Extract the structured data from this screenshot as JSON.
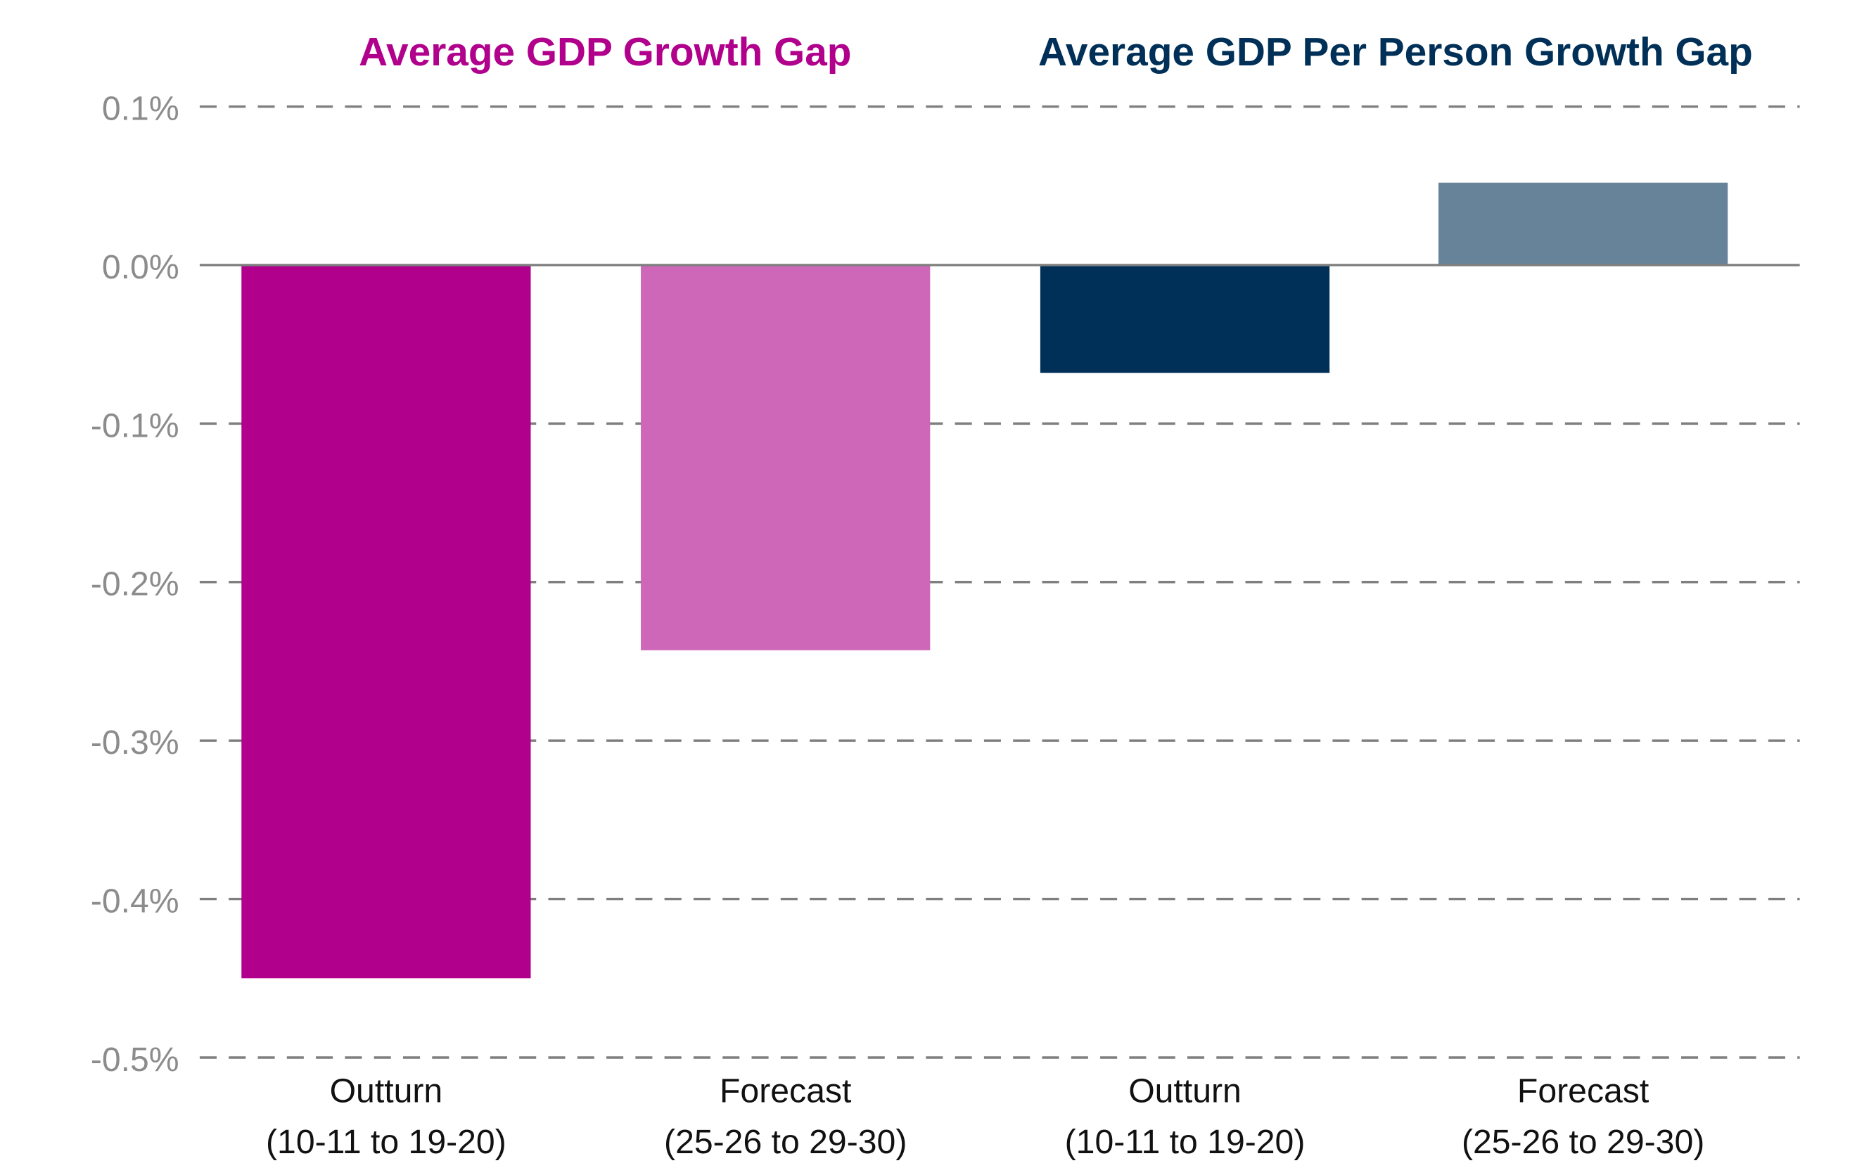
{
  "chart_data": {
    "type": "bar",
    "group_titles": [
      {
        "text": "Average GDP Growth Gap",
        "color": "#B0008C"
      },
      {
        "text": "Average GDP Per Person Growth Gap",
        "color": "#003057"
      }
    ],
    "categories": [
      {
        "line1": "Outturn",
        "line2": "(10-11 to 19-20)"
      },
      {
        "line1": "Forecast",
        "line2": "(25-26 to 29-30)"
      },
      {
        "line1": "Outturn",
        "line2": "(10-11 to 19-20)"
      },
      {
        "line1": "Forecast",
        "line2": "(25-26 to 29-30)"
      }
    ],
    "values": [
      -0.45,
      -0.243,
      -0.068,
      0.052
    ],
    "colors": [
      "#B0008C",
      "#CE67B8",
      "#003057",
      "#678399"
    ],
    "ylim": [
      -0.5,
      0.1
    ],
    "yticks": [
      0.1,
      0.0,
      -0.1,
      -0.2,
      -0.3,
      -0.4,
      -0.5
    ],
    "ytick_labels": [
      "0.1%",
      "0.0%",
      "-0.1%",
      "-0.2%",
      "-0.3%",
      "-0.4%",
      "-0.5%"
    ],
    "grid": "horizontal-dashed",
    "xlabel": "",
    "ylabel": ""
  }
}
